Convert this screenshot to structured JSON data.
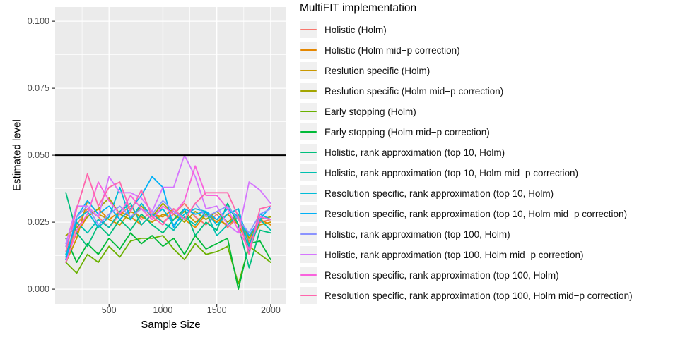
{
  "chart_data": {
    "type": "line",
    "xlabel": "Sample Size",
    "ylabel": "Estimated level",
    "legend_title": "MultiFIT implementation",
    "legend_position": "right",
    "x": [
      100,
      200,
      300,
      400,
      500,
      600,
      700,
      800,
      900,
      1000,
      1100,
      1200,
      1300,
      1400,
      1500,
      1600,
      1700,
      1800,
      1900,
      2000
    ],
    "xticks": [
      "500",
      "1000",
      "1500",
      "2000"
    ],
    "xtick_values": [
      500,
      1000,
      1500,
      2000
    ],
    "x_minor": [
      250,
      750,
      1250,
      1750
    ],
    "yticks": [
      "0.000",
      "0.025",
      "0.050",
      "0.075",
      "0.100"
    ],
    "ytick_values": [
      0,
      0.025,
      0.05,
      0.075,
      0.1
    ],
    "y_minor": [
      0.0125,
      0.0375,
      0.0625,
      0.0875
    ],
    "xlim": [
      0,
      2145
    ],
    "ylim": [
      -0.0055,
      0.1053
    ],
    "grid": true,
    "reference_line_y": 0.05,
    "colors": {
      "panel_background": "#EBEBEB",
      "grid": "#FFFFFF",
      "reference_line": "#000000",
      "axis_text": "#4D4D4D",
      "axis_title": "#000000",
      "legend_key_background": "#F0F0F0"
    },
    "series": [
      {
        "name": "Holistic (Holm)",
        "color": "#F8766D",
        "values": [
          0.011,
          0.024,
          0.03,
          0.027,
          0.023,
          0.028,
          0.031,
          0.026,
          0.029,
          0.025,
          0.028,
          0.032,
          0.027,
          0.024,
          0.028,
          0.023,
          0.027,
          0.018,
          0.025,
          0.026
        ]
      },
      {
        "name": "Holistic (Holm mid−p correction)",
        "color": "#E58700",
        "values": [
          0.012,
          0.021,
          0.027,
          0.03,
          0.026,
          0.029,
          0.027,
          0.024,
          0.028,
          0.027,
          0.03,
          0.026,
          0.023,
          0.028,
          0.025,
          0.028,
          0.024,
          0.016,
          0.026,
          0.024
        ]
      },
      {
        "name": "Reslution specific (Holm)",
        "color": "#C99800",
        "values": [
          0.01,
          0.019,
          0.033,
          0.028,
          0.026,
          0.024,
          0.029,
          0.027,
          0.025,
          0.028,
          0.026,
          0.029,
          0.025,
          0.028,
          0.026,
          0.024,
          0.027,
          0.017,
          0.024,
          0.025
        ]
      },
      {
        "name": "Reslution specific (Holm mid−p correction)",
        "color": "#A3A500",
        "values": [
          0.02,
          0.023,
          0.027,
          0.03,
          0.034,
          0.028,
          0.026,
          0.031,
          0.027,
          0.032,
          0.028,
          0.025,
          0.029,
          0.026,
          0.029,
          0.025,
          0.028,
          0.019,
          0.026,
          0.027
        ]
      },
      {
        "name": "Early stopping (Holm)",
        "color": "#6BB100",
        "values": [
          0.01,
          0.006,
          0.013,
          0.01,
          0.016,
          0.012,
          0.018,
          0.019,
          0.019,
          0.02,
          0.015,
          0.011,
          0.017,
          0.013,
          0.014,
          0.016,
          0.002,
          0.016,
          0.013,
          0.01
        ]
      },
      {
        "name": "Early stopping (Holm mid−p correction)",
        "color": "#00BA38",
        "values": [
          0.019,
          0.01,
          0.017,
          0.013,
          0.019,
          0.015,
          0.021,
          0.017,
          0.02,
          0.016,
          0.019,
          0.013,
          0.02,
          0.015,
          0.017,
          0.019,
          0.0,
          0.017,
          0.018,
          0.011
        ]
      },
      {
        "name": "Holistic, rank approximation (top 10, Holm)",
        "color": "#00BF7D",
        "values": [
          0.036,
          0.021,
          0.016,
          0.024,
          0.02,
          0.026,
          0.022,
          0.028,
          0.024,
          0.021,
          0.026,
          0.03,
          0.02,
          0.025,
          0.022,
          0.032,
          0.024,
          0.008,
          0.022,
          0.021
        ]
      },
      {
        "name": "Holistic, rank approximation (top 10, Holm mid−p correction)",
        "color": "#00C0AF",
        "values": [
          0.013,
          0.025,
          0.021,
          0.026,
          0.023,
          0.029,
          0.032,
          0.024,
          0.028,
          0.025,
          0.022,
          0.027,
          0.024,
          0.029,
          0.02,
          0.024,
          0.028,
          0.014,
          0.026,
          0.022
        ]
      },
      {
        "name": "Resolution specific, rank approximation (top 10, Holm)",
        "color": "#00BCD8",
        "values": [
          0.012,
          0.026,
          0.029,
          0.023,
          0.027,
          0.038,
          0.026,
          0.032,
          0.027,
          0.03,
          0.024,
          0.028,
          0.03,
          0.029,
          0.024,
          0.028,
          0.03,
          0.016,
          0.028,
          0.026
        ]
      },
      {
        "name": "Resolution specific, rank approximation (top 10, Holm mid−p correction)",
        "color": "#00B0F6",
        "values": [
          0.011,
          0.027,
          0.033,
          0.028,
          0.031,
          0.026,
          0.03,
          0.035,
          0.042,
          0.038,
          0.023,
          0.03,
          0.028,
          0.029,
          0.026,
          0.03,
          0.027,
          0.02,
          0.026,
          0.031
        ]
      },
      {
        "name": "Holistic, rank approximation (top 100, Holm)",
        "color": "#8B93FF",
        "values": [
          0.016,
          0.027,
          0.031,
          0.024,
          0.028,
          0.031,
          0.027,
          0.03,
          0.028,
          0.033,
          0.029,
          0.026,
          0.032,
          0.027,
          0.029,
          0.031,
          0.026,
          0.021,
          0.028,
          0.03
        ]
      },
      {
        "name": "Holistic, rank approximation (top 100, Holm mid−p correction)",
        "color": "#D575FE",
        "values": [
          0.017,
          0.031,
          0.031,
          0.027,
          0.042,
          0.036,
          0.036,
          0.034,
          0.029,
          0.038,
          0.038,
          0.05,
          0.042,
          0.03,
          0.031,
          0.024,
          0.021,
          0.04,
          0.037,
          0.032
        ]
      },
      {
        "name": "Resolution specific, rank approximation (top 100, Holm)",
        "color": "#F962DD",
        "values": [
          0.01,
          0.022,
          0.028,
          0.04,
          0.033,
          0.028,
          0.035,
          0.03,
          0.026,
          0.031,
          0.028,
          0.033,
          0.046,
          0.035,
          0.035,
          0.03,
          0.022,
          0.015,
          0.027,
          0.026
        ]
      },
      {
        "name": "Resolution specific, rank approximation (top 100, Holm mid−p correction)",
        "color": "#FF65AC",
        "values": [
          0.014,
          0.03,
          0.043,
          0.031,
          0.038,
          0.04,
          0.029,
          0.037,
          0.027,
          0.024,
          0.03,
          0.026,
          0.032,
          0.036,
          0.036,
          0.036,
          0.027,
          0.013,
          0.03,
          0.031
        ]
      }
    ]
  }
}
